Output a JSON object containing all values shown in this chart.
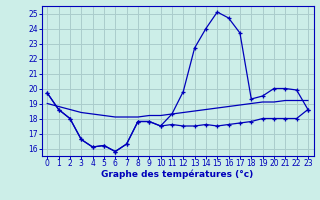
{
  "title": "Graphe des températures (°c)",
  "bg_color": "#cceee8",
  "grid_color": "#aacccc",
  "line_color": "#0000bb",
  "xlim": [
    -0.5,
    23.5
  ],
  "ylim": [
    15.5,
    25.5
  ],
  "xticks": [
    0,
    1,
    2,
    3,
    4,
    5,
    6,
    7,
    8,
    9,
    10,
    11,
    12,
    13,
    14,
    15,
    16,
    17,
    18,
    19,
    20,
    21,
    22,
    23
  ],
  "yticks": [
    16,
    17,
    18,
    19,
    20,
    21,
    22,
    23,
    24,
    25
  ],
  "hours": [
    0,
    1,
    2,
    3,
    4,
    5,
    6,
    7,
    8,
    9,
    10,
    11,
    12,
    13,
    14,
    15,
    16,
    17,
    18,
    19,
    20,
    21,
    22,
    23
  ],
  "curve_minmax": [
    19.7,
    18.6,
    18.0,
    16.6,
    16.1,
    16.2,
    15.8,
    16.3,
    17.8,
    17.8,
    17.5,
    17.6,
    17.5,
    17.5,
    17.6,
    17.5,
    17.6,
    17.7,
    17.8,
    18.0,
    18.0,
    18.0,
    18.0,
    18.6
  ],
  "curve_actual": [
    19.7,
    18.6,
    18.0,
    16.6,
    16.1,
    16.2,
    15.8,
    16.3,
    17.8,
    17.8,
    17.5,
    18.3,
    19.8,
    22.7,
    24.0,
    25.1,
    24.7,
    23.7,
    19.3,
    19.5,
    20.0,
    20.0,
    19.9,
    18.6
  ],
  "curve_avg": [
    19.0,
    18.8,
    18.6,
    18.4,
    18.3,
    18.2,
    18.1,
    18.1,
    18.1,
    18.2,
    18.2,
    18.3,
    18.4,
    18.5,
    18.6,
    18.7,
    18.8,
    18.9,
    19.0,
    19.1,
    19.1,
    19.2,
    19.2,
    19.2
  ]
}
